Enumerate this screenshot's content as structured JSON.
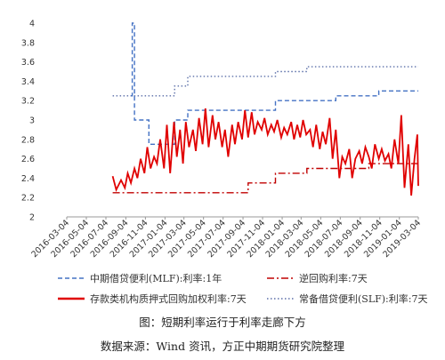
{
  "chart_data": {
    "type": "line",
    "title": "",
    "xlabel": "",
    "ylabel": "",
    "ylim": [
      2,
      4
    ],
    "yticks": [
      "2",
      "2.2",
      "2.4",
      "2.6",
      "2.8",
      "3",
      "3.2",
      "3.4",
      "3.6",
      "3.8",
      "4"
    ],
    "xticks": [
      "2016-03-04",
      "2016-05-04",
      "2016-07-04",
      "2016-09-04",
      "2016-11-04",
      "2017-01-04",
      "2017-03-04",
      "2017-05-04",
      "2017-07-04",
      "2017-09-04",
      "2017-11-04",
      "2018-01-04",
      "2018-03-04",
      "2018-05-04",
      "2018-07-04",
      "2018-09-04",
      "2018-11-04",
      "2019-01-04",
      "2019-03-04"
    ],
    "grid": false,
    "legend_position": "bottom",
    "series": [
      {
        "name": "中期借贷便利(MLF):利率:1年",
        "color": "#4472C4",
        "style": "dashed",
        "x": [
          "2016-09-20",
          "2016-09-24",
          "2016-10-01",
          "2016-10-25",
          "2016-11-15",
          "2017-01-20",
          "2017-02-03",
          "2017-03-16",
          "2017-09-01",
          "2017-12-14",
          "2018-03-22",
          "2018-06-20",
          "2018-11-01",
          "2019-03-04"
        ],
        "y": [
          3.25,
          4.0,
          3.0,
          3.0,
          2.75,
          2.75,
          3.0,
          3.1,
          3.1,
          3.2,
          3.2,
          3.25,
          3.3,
          3.3
        ]
      },
      {
        "name": "逆回购利率:7天",
        "color": "#C00000",
        "style": "dashdot",
        "x": [
          "2016-07-25",
          "2017-02-03",
          "2017-03-16",
          "2017-09-01",
          "2017-09-20",
          "2017-12-14",
          "2018-03-22",
          "2018-07-20",
          "2018-10-01",
          "2019-03-04"
        ],
        "y": [
          2.25,
          2.25,
          2.25,
          2.25,
          2.35,
          2.45,
          2.5,
          2.5,
          2.55,
          2.55
        ]
      },
      {
        "name": "存款类机构质押式回购加权利率:7天",
        "color": "#E00000",
        "style": "solid",
        "x": [
          "2016-07-25",
          "2016-08-05",
          "2016-08-20",
          "2016-09-01",
          "2016-09-10",
          "2016-09-20",
          "2016-10-01",
          "2016-10-10",
          "2016-10-20",
          "2016-11-01",
          "2016-11-10",
          "2016-11-20",
          "2016-12-01",
          "2016-12-10",
          "2016-12-20",
          "2017-01-01",
          "2017-01-10",
          "2017-01-20",
          "2017-02-01",
          "2017-02-10",
          "2017-02-20",
          "2017-03-01",
          "2017-03-10",
          "2017-03-20",
          "2017-04-01",
          "2017-04-10",
          "2017-04-20",
          "2017-05-01",
          "2017-05-10",
          "2017-05-20",
          "2017-06-01",
          "2017-06-10",
          "2017-06-20",
          "2017-07-01",
          "2017-07-10",
          "2017-07-20",
          "2017-08-01",
          "2017-08-10",
          "2017-08-20",
          "2017-09-01",
          "2017-09-10",
          "2017-09-20",
          "2017-10-01",
          "2017-10-10",
          "2017-10-20",
          "2017-11-01",
          "2017-11-10",
          "2017-11-20",
          "2017-12-01",
          "2017-12-10",
          "2017-12-20",
          "2018-01-01",
          "2018-01-10",
          "2018-01-20",
          "2018-02-01",
          "2018-02-10",
          "2018-02-20",
          "2018-03-01",
          "2018-03-10",
          "2018-03-20",
          "2018-04-01",
          "2018-04-10",
          "2018-04-20",
          "2018-05-01",
          "2018-05-10",
          "2018-05-20",
          "2018-06-01",
          "2018-06-10",
          "2018-06-20",
          "2018-07-01",
          "2018-07-10",
          "2018-07-20",
          "2018-08-01",
          "2018-08-10",
          "2018-08-20",
          "2018-09-01",
          "2018-09-10",
          "2018-09-20",
          "2018-10-01",
          "2018-10-10",
          "2018-10-20",
          "2018-11-01",
          "2018-11-10",
          "2018-11-20",
          "2018-12-01",
          "2018-12-10",
          "2018-12-20",
          "2019-01-01",
          "2019-01-10",
          "2019-01-20",
          "2019-02-01",
          "2019-02-10",
          "2019-02-20",
          "2019-03-01",
          "2019-03-04"
        ],
        "y": [
          2.42,
          2.28,
          2.38,
          2.3,
          2.45,
          2.35,
          2.5,
          2.4,
          2.6,
          2.45,
          2.72,
          2.5,
          2.62,
          2.55,
          2.8,
          2.5,
          2.95,
          2.45,
          2.98,
          2.62,
          2.9,
          2.55,
          2.98,
          2.72,
          2.9,
          2.68,
          3.02,
          2.75,
          3.12,
          2.72,
          3.05,
          2.8,
          2.98,
          2.72,
          2.9,
          2.62,
          2.95,
          2.75,
          2.98,
          2.8,
          3.1,
          2.82,
          3.08,
          2.85,
          2.98,
          2.9,
          3.02,
          2.85,
          2.95,
          2.88,
          3.0,
          2.82,
          2.92,
          2.85,
          2.98,
          2.8,
          2.95,
          2.82,
          3.0,
          2.85,
          2.9,
          2.72,
          2.95,
          2.7,
          2.88,
          2.75,
          3.02,
          2.6,
          2.9,
          2.4,
          2.62,
          2.55,
          2.7,
          2.4,
          2.6,
          2.68,
          2.55,
          2.72,
          2.62,
          2.5,
          2.75,
          2.6,
          2.7,
          2.58,
          2.65,
          2.5,
          2.8,
          2.55,
          3.05,
          2.3,
          2.75,
          2.22,
          2.6,
          2.85,
          2.32
        ]
      },
      {
        "name": "常备借贷便利(SLF):利率:7天",
        "color": "#5B6FA8",
        "style": "dotted",
        "x": [
          "2016-07-25",
          "2017-02-03",
          "2017-03-16",
          "2017-12-14",
          "2018-03-22",
          "2019-03-04"
        ],
        "y": [
          3.25,
          3.35,
          3.45,
          3.5,
          3.55,
          3.55
        ]
      }
    ]
  },
  "captions": {
    "figure_title": "图：短期利率运行于利率走廊下方",
    "source": "数据来源：Wind 资讯，方正中期期货研究院整理"
  }
}
